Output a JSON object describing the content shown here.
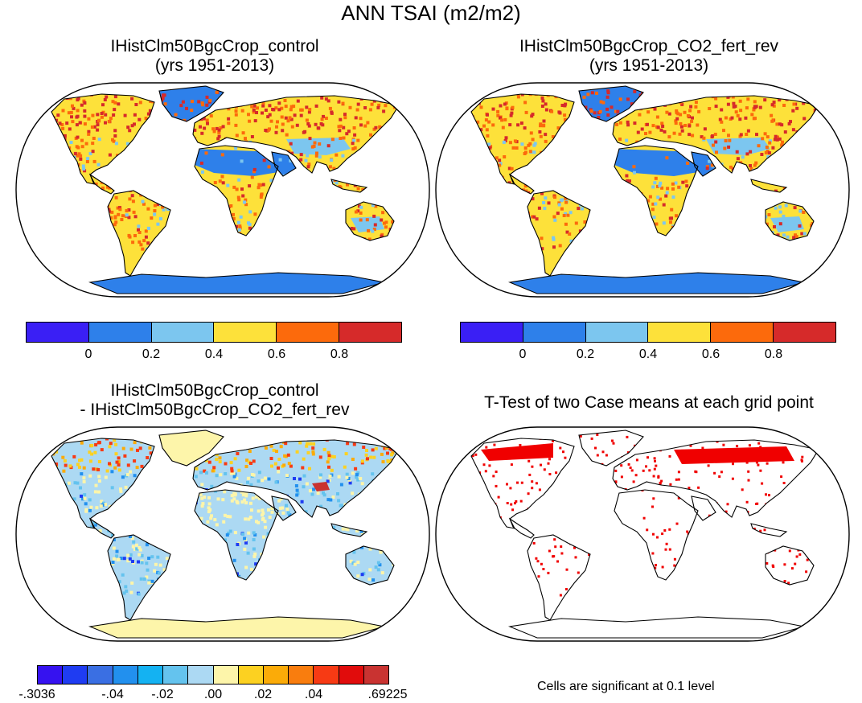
{
  "title": "ANN TSAI (m2/m2)",
  "panels": [
    {
      "title_line1": "IHistClm50BgcCrop_control",
      "title_line2": "(yrs 1951-2013)"
    },
    {
      "title_line1": "IHistClm50BgcCrop_CO2_fert_rev",
      "title_line2": "(yrs 1951-2013)"
    },
    {
      "title_line1": "IHistClm50BgcCrop_control",
      "title_line2": "- IHistClm50BgcCrop_CO2_fert_rev"
    },
    {
      "title_line1": "T-Test of two Case means at each grid point",
      "title_line2": ""
    }
  ],
  "colorbar_main": {
    "colors": [
      "#3a1ff5",
      "#2e80ea",
      "#7cc6ef",
      "#fde13a",
      "#fc6a0c",
      "#d62a2a"
    ],
    "tick_labels": [
      "0",
      "0.2",
      "0.4",
      "0.6",
      "0.8"
    ]
  },
  "colorbar_diff": {
    "colors": [
      "#3612f0",
      "#1f3cf2",
      "#3a6fe3",
      "#2290ee",
      "#14b2f2",
      "#64c3ee",
      "#acd9f3",
      "#fdf5aa",
      "#fcd121",
      "#fbab08",
      "#f97d0e",
      "#f73a14",
      "#e10c0c",
      "#c93331"
    ],
    "tick_labels": [
      "-.3036",
      "-.04",
      "-.02",
      ".00",
      ".02",
      ".04",
      ".69225"
    ]
  },
  "ttest_note": "Cells are significant at 0.1 level",
  "colors": {
    "ocean": "#ffffff",
    "significant": "#f00000",
    "coast": "#000000"
  }
}
